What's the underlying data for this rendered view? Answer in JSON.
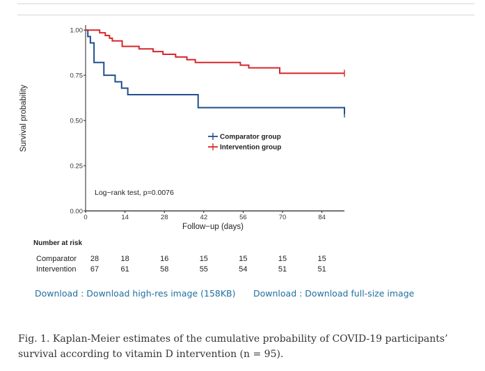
{
  "chart_data": {
    "type": "line",
    "kind": "kaplan-meier",
    "title": "",
    "xlabel": "Follow−up (days)",
    "ylabel": "Survival probability",
    "xlim": [
      0,
      92
    ],
    "ylim": [
      0,
      1.02
    ],
    "x_ticks": [
      0,
      14,
      28,
      42,
      56,
      70,
      84
    ],
    "y_ticks": [
      0.0,
      0.25,
      0.5,
      0.75,
      1.0
    ],
    "y_tick_labels": [
      "0.00",
      "0.25",
      "0.50",
      "0.75",
      "1.00"
    ],
    "annotation": "Log−rank test, p=0.0076",
    "legend_position": "center-right",
    "series": [
      {
        "name": "Comparator group",
        "color": "#1f4e8c",
        "x": [
          0,
          0.8,
          1.7,
          3,
          6.5,
          10.5,
          12.8,
          15,
          40,
          92
        ],
        "y": [
          1.0,
          0.964,
          0.929,
          0.821,
          0.75,
          0.714,
          0.679,
          0.643,
          0.571,
          0.536
        ]
      },
      {
        "name": "Intervention group",
        "color": "#d8262c",
        "x": [
          0,
          5,
          7,
          8.5,
          9.5,
          13,
          19,
          24,
          27.5,
          32,
          36,
          39,
          55,
          58,
          69,
          92
        ],
        "y": [
          1.0,
          0.985,
          0.97,
          0.955,
          0.94,
          0.91,
          0.896,
          0.881,
          0.866,
          0.851,
          0.836,
          0.821,
          0.806,
          0.791,
          0.761,
          0.761
        ]
      }
    ]
  },
  "risk_table": {
    "title": "Number at risk",
    "times": [
      0,
      14,
      28,
      42,
      56,
      70,
      84
    ],
    "rows": [
      {
        "label": "Comparator",
        "counts": [
          "28",
          "18",
          "16",
          "15",
          "15",
          "15",
          "15"
        ]
      },
      {
        "label": "Intervention",
        "counts": [
          "67",
          "61",
          "58",
          "55",
          "54",
          "51",
          "51"
        ]
      }
    ]
  },
  "links": {
    "high_res": "Download : Download high-res image (158KB)",
    "full_size": "Download : Download full-size image"
  },
  "caption": "Fig. 1. Kaplan-Meier estimates of the cumulative probability of COVID-19 participants’ survival according to vitamin D intervention (n = 95)."
}
